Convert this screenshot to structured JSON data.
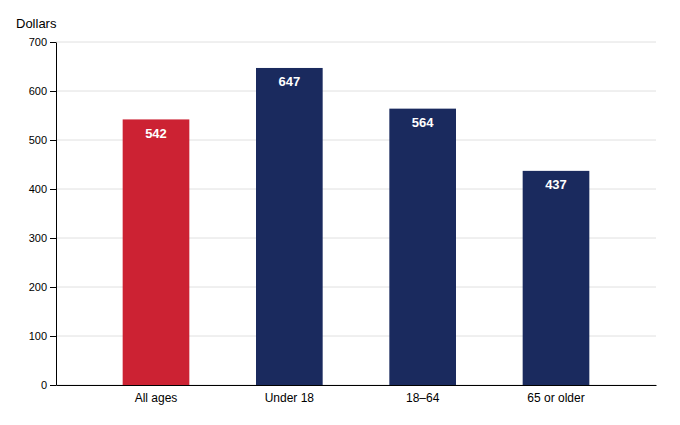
{
  "chart_data": {
    "type": "bar",
    "ylabel": "Dollars",
    "categories": [
      "All ages",
      "Under 18",
      "18–64",
      "65 or older"
    ],
    "values": [
      542,
      647,
      564,
      437
    ],
    "colors": [
      "#cc2233",
      "#1a2a5e",
      "#1a2a5e",
      "#1a2a5e"
    ],
    "ylim": [
      0,
      700
    ],
    "yticks": [
      0,
      100,
      200,
      300,
      400,
      500,
      600,
      700
    ],
    "grid": true,
    "data_labels": true
  }
}
